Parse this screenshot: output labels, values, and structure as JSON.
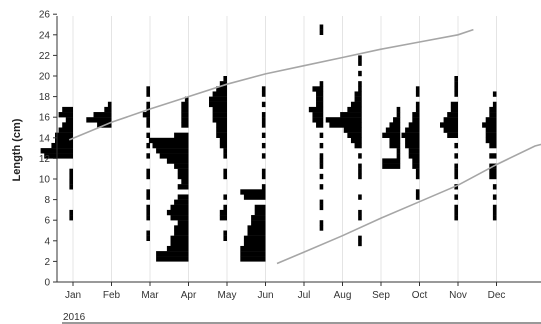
{
  "chart_data": {
    "type": "bar",
    "subtype": "length-frequency histograms by month with growth curves",
    "ylabel": "Length (cm)",
    "year_label": "2016",
    "ylim": [
      0,
      26
    ],
    "yticks": [
      0,
      2,
      4,
      6,
      8,
      10,
      12,
      14,
      16,
      18,
      20,
      22,
      24,
      26
    ],
    "months": [
      "Jan",
      "Feb",
      "Mar",
      "Apr",
      "May",
      "Jun",
      "Jul",
      "Aug",
      "Sep",
      "Oct",
      "Nov",
      "Dec"
    ],
    "grid": "vertical",
    "colors": {
      "bars": "#000000",
      "curves": "#a6a6a6",
      "grid": "#e4e4e4",
      "axis": "#333333"
    },
    "bin_width_cm": 0.5,
    "samples": [
      {
        "month": 0.0,
        "bins": [
          [
            6,
            1
          ],
          [
            6.5,
            1
          ],
          [
            9,
            1
          ],
          [
            9.5,
            1
          ],
          [
            10,
            1
          ],
          [
            10.5,
            1
          ],
          [
            12,
            8
          ],
          [
            12.5,
            9
          ],
          [
            13,
            6
          ],
          [
            13.5,
            5
          ],
          [
            14,
            5
          ],
          [
            14.5,
            4
          ],
          [
            15,
            3
          ],
          [
            15.5,
            2
          ],
          [
            16,
            4
          ],
          [
            16.5,
            3
          ]
        ]
      },
      {
        "month": 1.0,
        "bins": [
          [
            15,
            4
          ],
          [
            15.5,
            7
          ],
          [
            16,
            5
          ],
          [
            16.5,
            2
          ],
          [
            17,
            1
          ]
        ]
      },
      {
        "month": 2.0,
        "bins": [
          [
            4,
            1
          ],
          [
            4.5,
            1
          ],
          [
            6,
            1
          ],
          [
            6.5,
            1
          ],
          [
            7,
            1
          ],
          [
            8,
            1
          ],
          [
            8.5,
            1
          ],
          [
            10,
            1
          ],
          [
            10.5,
            1
          ],
          [
            12,
            1
          ],
          [
            13,
            1
          ],
          [
            14,
            1
          ],
          [
            15,
            1
          ],
          [
            15.5,
            1
          ],
          [
            16,
            2
          ],
          [
            16.5,
            1
          ],
          [
            17,
            1
          ],
          [
            18,
            1
          ],
          [
            18.5,
            1
          ]
        ]
      },
      {
        "month": 3.0,
        "bins": [
          [
            2,
            9
          ],
          [
            2.5,
            9
          ],
          [
            3,
            6
          ],
          [
            3.5,
            5
          ],
          [
            4,
            5
          ],
          [
            4.5,
            4
          ],
          [
            5,
            4
          ],
          [
            5.5,
            3
          ],
          [
            6,
            5
          ],
          [
            6.5,
            6
          ],
          [
            7,
            5
          ],
          [
            7.5,
            4
          ],
          [
            8,
            3
          ],
          [
            9,
            3
          ],
          [
            9.5,
            2
          ],
          [
            10,
            3
          ],
          [
            10.5,
            3
          ],
          [
            11,
            4
          ],
          [
            11.5,
            6
          ],
          [
            12,
            8
          ],
          [
            12.5,
            9
          ],
          [
            13,
            10
          ],
          [
            13.5,
            11
          ],
          [
            14,
            4
          ],
          [
            15,
            2
          ],
          [
            15.5,
            2
          ],
          [
            16,
            2
          ],
          [
            16.5,
            2
          ],
          [
            17,
            2
          ],
          [
            17.5,
            1
          ]
        ]
      },
      {
        "month": 4.0,
        "bins": [
          [
            4,
            1
          ],
          [
            4.5,
            1
          ],
          [
            6,
            2
          ],
          [
            6.5,
            2
          ],
          [
            7,
            1
          ],
          [
            8,
            1
          ],
          [
            10,
            1
          ],
          [
            10.5,
            1
          ],
          [
            12,
            1
          ],
          [
            12.5,
            1
          ],
          [
            13,
            2
          ],
          [
            13.5,
            2
          ],
          [
            14,
            3
          ],
          [
            14.5,
            3
          ],
          [
            15,
            3
          ],
          [
            15.5,
            4
          ],
          [
            16,
            4
          ],
          [
            16.5,
            4
          ],
          [
            17,
            5
          ],
          [
            17.5,
            5
          ],
          [
            18,
            4
          ],
          [
            18.5,
            3
          ],
          [
            19,
            2
          ],
          [
            19.5,
            1
          ]
        ]
      },
      {
        "month": 5.0,
        "bins": [
          [
            2,
            7
          ],
          [
            2.5,
            7
          ],
          [
            3,
            7
          ],
          [
            3.5,
            6
          ],
          [
            4,
            6
          ],
          [
            4.5,
            5
          ],
          [
            5,
            5
          ],
          [
            5.5,
            4
          ],
          [
            6,
            4
          ],
          [
            6.5,
            3
          ],
          [
            7,
            3
          ],
          [
            8,
            6
          ],
          [
            8.5,
            7
          ],
          [
            9,
            1
          ],
          [
            10,
            1
          ],
          [
            10.5,
            1
          ],
          [
            12,
            1
          ],
          [
            13,
            1
          ],
          [
            14,
            1
          ],
          [
            15,
            1
          ],
          [
            15.5,
            1
          ],
          [
            16,
            1
          ],
          [
            17,
            1
          ],
          [
            18,
            1
          ],
          [
            18.5,
            1
          ]
        ]
      },
      {
        "month": 6.5,
        "bins": [
          [
            5,
            1
          ],
          [
            5.5,
            1
          ],
          [
            7,
            1
          ],
          [
            7.5,
            1
          ],
          [
            9,
            1
          ],
          [
            10,
            1
          ],
          [
            11,
            1
          ],
          [
            11.5,
            1
          ],
          [
            12,
            1
          ],
          [
            13,
            1
          ],
          [
            14,
            1
          ],
          [
            15,
            2
          ],
          [
            15.5,
            3
          ],
          [
            16,
            3
          ],
          [
            16.5,
            4
          ],
          [
            17,
            2
          ],
          [
            17.5,
            2
          ],
          [
            18,
            2
          ],
          [
            18.5,
            3
          ],
          [
            19,
            1
          ],
          [
            24,
            1
          ],
          [
            24.5,
            1
          ]
        ]
      },
      {
        "month": 7.5,
        "bins": [
          [
            3.5,
            1
          ],
          [
            4,
            1
          ],
          [
            6,
            1
          ],
          [
            6.5,
            1
          ],
          [
            8,
            1
          ],
          [
            10,
            1
          ],
          [
            10.5,
            1
          ],
          [
            11,
            1
          ],
          [
            12,
            1
          ],
          [
            13,
            2
          ],
          [
            13.5,
            3
          ],
          [
            14,
            4
          ],
          [
            14.5,
            5
          ],
          [
            15,
            9
          ],
          [
            15.5,
            10
          ],
          [
            16,
            6
          ],
          [
            16.5,
            4
          ],
          [
            17,
            3
          ],
          [
            17.5,
            2
          ],
          [
            18,
            2
          ],
          [
            18.5,
            1
          ],
          [
            19,
            1
          ],
          [
            20,
            1
          ],
          [
            21,
            1
          ],
          [
            21.5,
            1
          ]
        ]
      },
      {
        "month": 8.5,
        "bins": [
          [
            11,
            5
          ],
          [
            11.5,
            5
          ],
          [
            12,
            1
          ],
          [
            12.5,
            1
          ],
          [
            13,
            3
          ],
          [
            13.5,
            3
          ],
          [
            14,
            5
          ],
          [
            14.5,
            4
          ],
          [
            15,
            3
          ],
          [
            15.5,
            2
          ],
          [
            16,
            1
          ],
          [
            16.5,
            1
          ]
        ]
      },
      {
        "month": 9.0,
        "bins": [
          [
            8,
            1
          ],
          [
            8.5,
            1
          ],
          [
            10,
            1
          ],
          [
            10.5,
            1
          ],
          [
            11,
            2
          ],
          [
            11.5,
            2
          ],
          [
            12,
            3
          ],
          [
            12.5,
            3
          ],
          [
            13,
            4
          ],
          [
            13.5,
            4
          ],
          [
            14,
            5
          ],
          [
            14.5,
            4
          ],
          [
            15,
            3
          ],
          [
            15.5,
            2
          ],
          [
            16,
            2
          ],
          [
            16.5,
            1
          ],
          [
            17,
            1
          ],
          [
            18,
            1
          ],
          [
            18.5,
            1
          ]
        ]
      },
      {
        "month": 10.0,
        "bins": [
          [
            6,
            1
          ],
          [
            6.5,
            1
          ],
          [
            7,
            1
          ],
          [
            8,
            1
          ],
          [
            9,
            1
          ],
          [
            10,
            1
          ],
          [
            10.5,
            1
          ],
          [
            11,
            1
          ],
          [
            12,
            1
          ],
          [
            13,
            1
          ],
          [
            14,
            3
          ],
          [
            14.5,
            4
          ],
          [
            15,
            5
          ],
          [
            15.5,
            4
          ],
          [
            16,
            3
          ],
          [
            16.5,
            2
          ],
          [
            17,
            2
          ],
          [
            18,
            1
          ],
          [
            18.5,
            1
          ],
          [
            19,
            1
          ],
          [
            19.5,
            1
          ]
        ]
      },
      {
        "month": 11.0,
        "bins": [
          [
            6,
            1
          ],
          [
            6.5,
            1
          ],
          [
            7,
            1
          ],
          [
            8,
            1
          ],
          [
            9,
            1
          ],
          [
            10,
            2
          ],
          [
            10.5,
            2
          ],
          [
            11,
            2
          ],
          [
            12,
            2
          ],
          [
            13,
            2
          ],
          [
            13.5,
            3
          ],
          [
            14,
            3
          ],
          [
            14.5,
            3
          ],
          [
            15,
            4
          ],
          [
            15.5,
            3
          ],
          [
            16,
            2
          ],
          [
            16.5,
            2
          ],
          [
            17,
            1
          ],
          [
            18,
            1
          ]
        ]
      }
    ],
    "growth_curves": [
      {
        "points": [
          [
            -0.1,
            13.8
          ],
          [
            1,
            15.5
          ],
          [
            2,
            16.8
          ],
          [
            3,
            18.0
          ],
          [
            4,
            19.2
          ],
          [
            5,
            20.2
          ],
          [
            6,
            21.0
          ],
          [
            7,
            21.8
          ],
          [
            8,
            22.6
          ],
          [
            9,
            23.3
          ],
          [
            10,
            24.0
          ],
          [
            10.4,
            24.5
          ]
        ]
      },
      {
        "points": [
          [
            5.3,
            1.8
          ],
          [
            6,
            2.9
          ],
          [
            7,
            4.5
          ],
          [
            8,
            6.2
          ],
          [
            9,
            7.8
          ],
          [
            10,
            9.4
          ],
          [
            11,
            11.4
          ],
          [
            12,
            13.2
          ],
          [
            12.8,
            14.0
          ]
        ]
      }
    ]
  }
}
